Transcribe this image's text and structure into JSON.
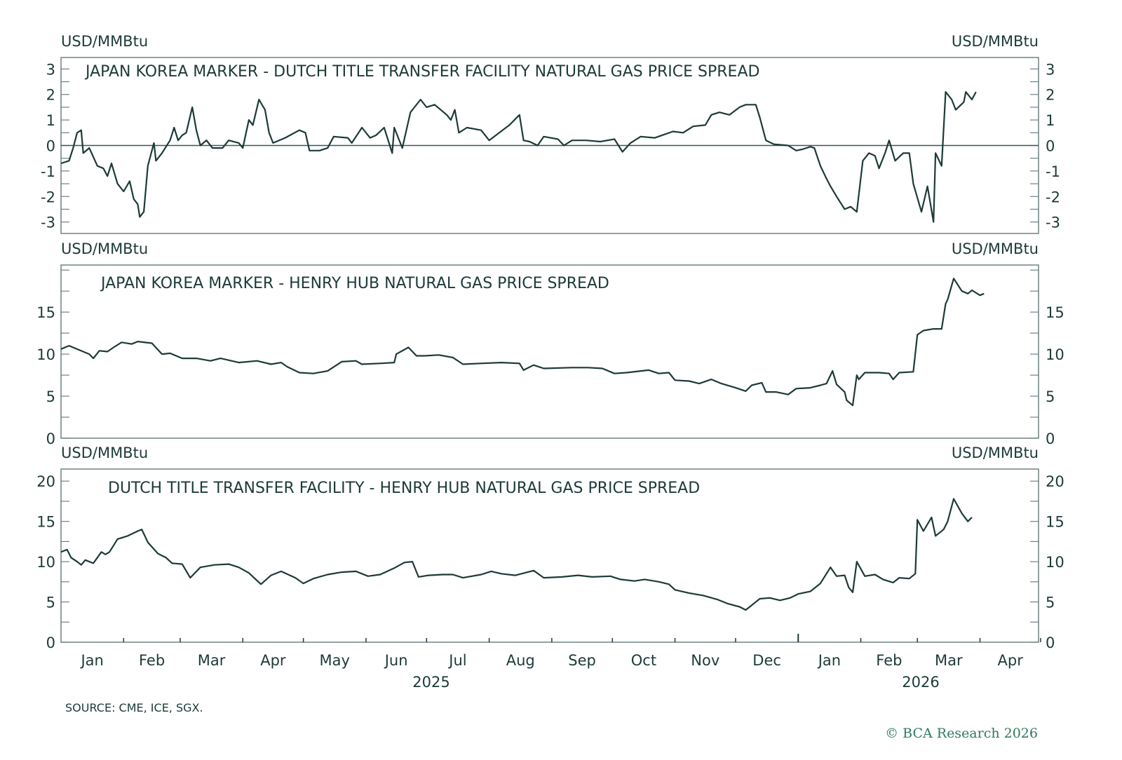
{
  "colors": {
    "line": "#1c3a38",
    "frame": "#6f8382",
    "zero_line": "#3a5654",
    "copyright": "#2e7a5a"
  },
  "source": "SOURCE: CME, ICE, SGX.",
  "copyright": "© BCA Research 2026",
  "x_axis": {
    "months": [
      "Jan",
      "Feb",
      "Mar",
      "Apr",
      "May",
      "Jun",
      "Jul",
      "Aug",
      "Sep",
      "Oct",
      "Nov",
      "Dec",
      "Jan",
      "Feb",
      "Mar",
      "Apr"
    ],
    "years": [
      "2025",
      "2026"
    ],
    "xlim": [
      "2025-01-01",
      "2026-04-30"
    ]
  },
  "chart_data": [
    {
      "type": "line",
      "title": "JAPAN KOREA MARKER - DUTCH TITLE TRANSFER FACILITY NATURAL GAS PRICE SPREAD",
      "ylabel_left": "USD/MMBtu",
      "ylabel_right": "USD/MMBtu",
      "ylim": [
        -3.45,
        3.45
      ],
      "yticks": [
        3,
        2,
        1,
        0,
        -1,
        -2,
        -3
      ],
      "yticklabels": [
        "3",
        "2",
        "1",
        "0",
        "-1",
        "-2",
        "-3"
      ],
      "zero_line": true,
      "x": [
        "2025-01-01",
        "2025-01-05",
        "2025-01-07",
        "2025-01-09",
        "2025-01-11",
        "2025-01-12",
        "2025-01-15",
        "2025-01-19",
        "2025-01-22",
        "2025-01-24",
        "2025-01-26",
        "2025-01-29",
        "2025-02-01",
        "2025-02-04",
        "2025-02-06",
        "2025-02-08",
        "2025-02-09",
        "2025-02-11",
        "2025-02-13",
        "2025-02-16",
        "2025-02-17",
        "2025-02-20",
        "2025-02-24",
        "2025-02-26",
        "2025-02-28",
        "2025-03-02",
        "2025-03-04",
        "2025-03-07",
        "2025-03-09",
        "2025-03-11",
        "2025-03-14",
        "2025-03-17",
        "2025-03-22",
        "2025-03-25",
        "2025-03-30",
        "2025-04-01",
        "2025-04-04",
        "2025-04-06",
        "2025-04-09",
        "2025-04-12",
        "2025-04-14",
        "2025-04-16",
        "2025-04-22",
        "2025-04-29",
        "2025-05-02",
        "2025-05-04",
        "2025-05-09",
        "2025-05-13",
        "2025-05-16",
        "2025-05-23",
        "2025-05-25",
        "2025-05-30",
        "2025-06-03",
        "2025-06-06",
        "2025-06-10",
        "2025-06-14",
        "2025-06-15",
        "2025-06-19",
        "2025-06-23",
        "2025-06-28",
        "2025-07-01",
        "2025-07-05",
        "2025-07-11",
        "2025-07-13",
        "2025-07-15",
        "2025-07-17",
        "2025-07-21",
        "2025-07-28",
        "2025-08-01",
        "2025-08-06",
        "2025-08-11",
        "2025-08-16",
        "2025-08-18",
        "2025-08-21",
        "2025-08-25",
        "2025-08-28",
        "2025-09-04",
        "2025-09-07",
        "2025-09-11",
        "2025-09-18",
        "2025-09-25",
        "2025-10-02",
        "2025-10-06",
        "2025-10-10",
        "2025-10-15",
        "2025-10-22",
        "2025-10-31",
        "2025-11-05",
        "2025-11-10",
        "2025-11-16",
        "2025-11-19",
        "2025-11-23",
        "2025-11-28",
        "2025-12-03",
        "2025-12-06",
        "2025-12-11",
        "2025-12-13",
        "2025-12-16",
        "2025-12-20",
        "2025-12-27",
        "2025-12-31",
        "2026-01-03",
        "2026-01-07",
        "2026-01-09",
        "2026-01-12",
        "2026-01-15",
        "2026-01-17",
        "2026-01-20",
        "2026-01-24",
        "2026-01-27",
        "2026-01-30",
        "2026-02-02",
        "2026-02-05",
        "2026-02-08",
        "2026-02-10",
        "2026-02-13",
        "2026-02-15",
        "2026-02-18",
        "2026-02-22",
        "2026-02-25",
        "2026-02-27",
        "2026-03-03",
        "2026-03-06",
        "2026-03-09",
        "2026-03-10",
        "2026-03-13",
        "2026-03-15",
        "2026-03-18",
        "2026-03-20",
        "2026-03-24",
        "2026-03-25",
        "2026-03-28",
        "2026-03-30"
      ],
      "y": [
        -0.7,
        -0.6,
        -0.1,
        0.5,
        0.6,
        -0.3,
        -0.1,
        -0.8,
        -0.9,
        -1.2,
        -0.7,
        -1.5,
        -1.8,
        -1.4,
        -2.1,
        -2.3,
        -2.8,
        -2.6,
        -0.8,
        0.1,
        -0.6,
        -0.3,
        0.2,
        0.7,
        0.2,
        0.4,
        0.5,
        1.5,
        0.6,
        0.0,
        0.2,
        -0.1,
        -0.1,
        0.2,
        0.1,
        -0.1,
        1.0,
        0.8,
        1.8,
        1.4,
        0.5,
        0.1,
        0.3,
        0.6,
        0.5,
        -0.2,
        -0.2,
        -0.1,
        0.35,
        0.3,
        0.1,
        0.7,
        0.3,
        0.4,
        0.7,
        -0.3,
        0.7,
        -0.1,
        1.3,
        1.8,
        1.5,
        1.6,
        1.2,
        1.0,
        1.4,
        0.5,
        0.7,
        0.6,
        0.2,
        0.5,
        0.8,
        1.2,
        0.2,
        0.15,
        0.0,
        0.35,
        0.25,
        0.0,
        0.2,
        0.2,
        0.15,
        0.25,
        -0.25,
        0.1,
        0.35,
        0.3,
        0.55,
        0.5,
        0.75,
        0.8,
        1.2,
        1.3,
        1.2,
        1.5,
        1.6,
        1.6,
        1.1,
        0.2,
        0.05,
        0.0,
        -0.2,
        -0.15,
        -0.05,
        -0.1,
        -0.8,
        -1.3,
        -1.6,
        -2.0,
        -2.5,
        -2.4,
        -2.6,
        -0.6,
        -0.3,
        -0.4,
        -0.9,
        -0.3,
        0.2,
        -0.6,
        -0.3,
        -0.3,
        -1.5,
        -2.6,
        -1.6,
        -3.0,
        -0.3,
        -0.8,
        2.1,
        1.8,
        1.4,
        1.7,
        2.1,
        1.8,
        2.1
      ]
    },
    {
      "type": "line",
      "title": "JAPAN KOREA MARKER - HENRY HUB NATURAL GAS PRICE SPREAD",
      "ylabel_left": "USD/MMBtu",
      "ylabel_right": "USD/MMBtu",
      "ylim": [
        0,
        20.6
      ],
      "yticks": [
        0,
        5,
        10,
        15
      ],
      "yticklabels": [
        "0",
        "5",
        "10",
        "15"
      ],
      "x": [
        "2025-01-01",
        "2025-01-05",
        "2025-01-10",
        "2025-01-15",
        "2025-01-17",
        "2025-01-20",
        "2025-01-24",
        "2025-01-27",
        "2025-01-31",
        "2025-02-05",
        "2025-02-08",
        "2025-02-15",
        "2025-02-20",
        "2025-02-24",
        "2025-03-02",
        "2025-03-09",
        "2025-03-16",
        "2025-03-21",
        "2025-03-30",
        "2025-04-08",
        "2025-04-15",
        "2025-04-20",
        "2025-04-23",
        "2025-04-29",
        "2025-05-06",
        "2025-05-13",
        "2025-05-20",
        "2025-05-27",
        "2025-05-30",
        "2025-06-08",
        "2025-06-15",
        "2025-06-16",
        "2025-06-22",
        "2025-06-26",
        "2025-06-30",
        "2025-07-07",
        "2025-07-14",
        "2025-07-19",
        "2025-07-28",
        "2025-08-07",
        "2025-08-16",
        "2025-08-18",
        "2025-08-23",
        "2025-08-28",
        "2025-09-11",
        "2025-09-19",
        "2025-09-26",
        "2025-10-02",
        "2025-10-08",
        "2025-10-19",
        "2025-10-24",
        "2025-10-29",
        "2025-11-01",
        "2025-11-08",
        "2025-11-13",
        "2025-11-19",
        "2025-11-24",
        "2025-12-01",
        "2025-12-06",
        "2025-12-09",
        "2025-12-14",
        "2025-12-16",
        "2025-12-21",
        "2025-12-27",
        "2025-12-31",
        "2026-01-07",
        "2026-01-12",
        "2026-01-15",
        "2026-01-18",
        "2026-01-20",
        "2026-01-24",
        "2026-01-25",
        "2026-01-28",
        "2026-01-30",
        "2026-01-31",
        "2026-02-03",
        "2026-02-10",
        "2026-02-15",
        "2026-02-17",
        "2026-02-20",
        "2026-02-27",
        "2026-03-01",
        "2026-03-04",
        "2026-03-09",
        "2026-03-13",
        "2026-03-15",
        "2026-03-16",
        "2026-03-19",
        "2026-03-23",
        "2026-03-26",
        "2026-03-28",
        "2026-04-01",
        "2026-04-03"
      ],
      "y": [
        10.6,
        11.0,
        10.5,
        10.0,
        9.5,
        10.4,
        10.3,
        10.8,
        11.4,
        11.2,
        11.5,
        11.3,
        10.0,
        10.1,
        9.5,
        9.5,
        9.2,
        9.5,
        9.0,
        9.2,
        8.8,
        9.0,
        8.5,
        7.8,
        7.7,
        8.0,
        9.1,
        9.2,
        8.8,
        8.9,
        9.0,
        10.0,
        10.8,
        9.8,
        9.8,
        9.9,
        9.6,
        8.8,
        8.9,
        9.0,
        8.9,
        8.1,
        8.7,
        8.3,
        8.4,
        8.4,
        8.3,
        7.7,
        7.8,
        8.1,
        7.7,
        7.8,
        6.9,
        6.8,
        6.5,
        7.0,
        6.5,
        6.0,
        5.6,
        6.3,
        6.6,
        5.5,
        5.5,
        5.2,
        5.9,
        6.0,
        6.3,
        6.5,
        8.0,
        6.4,
        5.5,
        4.5,
        3.9,
        7.5,
        7.0,
        7.8,
        7.8,
        7.7,
        7.0,
        7.8,
        7.9,
        12.3,
        12.8,
        13.0,
        13.0,
        16.0,
        16.5,
        19.0,
        17.5,
        17.2,
        17.6,
        17.0,
        17.2
      ]
    },
    {
      "type": "line",
      "title": "DUTCH TITLE TRANSFER FACILITY - HENRY HUB NATURAL GAS PRICE SPREAD",
      "ylabel_left": "USD/MMBtu",
      "ylabel_right": "USD/MMBtu",
      "ylim": [
        0,
        21.5
      ],
      "yticks": [
        0,
        5,
        10,
        15,
        20
      ],
      "yticklabels": [
        "0",
        "5",
        "10",
        "15",
        "20"
      ],
      "x": [
        "2025-01-01",
        "2025-01-04",
        "2025-01-06",
        "2025-01-09",
        "2025-01-11",
        "2025-01-13",
        "2025-01-17",
        "2025-01-21",
        "2025-01-23",
        "2025-01-25",
        "2025-01-29",
        "2025-02-03",
        "2025-02-08",
        "2025-02-10",
        "2025-02-13",
        "2025-02-18",
        "2025-02-22",
        "2025-02-25",
        "2025-03-02",
        "2025-03-06",
        "2025-03-11",
        "2025-03-18",
        "2025-03-25",
        "2025-03-30",
        "2025-04-04",
        "2025-04-10",
        "2025-04-15",
        "2025-04-20",
        "2025-04-27",
        "2025-05-01",
        "2025-05-06",
        "2025-05-13",
        "2025-05-20",
        "2025-05-27",
        "2025-06-02",
        "2025-06-08",
        "2025-06-15",
        "2025-06-20",
        "2025-06-24",
        "2025-06-27",
        "2025-07-02",
        "2025-07-09",
        "2025-07-14",
        "2025-07-19",
        "2025-07-28",
        "2025-08-02",
        "2025-08-07",
        "2025-08-14",
        "2025-08-23",
        "2025-08-28",
        "2025-09-06",
        "2025-09-14",
        "2025-09-21",
        "2025-09-30",
        "2025-10-05",
        "2025-10-12",
        "2025-10-17",
        "2025-10-24",
        "2025-10-29",
        "2025-11-01",
        "2025-11-08",
        "2025-11-15",
        "2025-11-22",
        "2025-11-27",
        "2025-12-03",
        "2025-12-06",
        "2025-12-09",
        "2025-12-13",
        "2025-12-18",
        "2025-12-23",
        "2025-12-28",
        "2026-01-01",
        "2026-01-07",
        "2026-01-12",
        "2026-01-17",
        "2026-01-20",
        "2026-01-24",
        "2026-01-26",
        "2026-01-28",
        "2026-01-30",
        "2026-02-03",
        "2026-02-08",
        "2026-02-12",
        "2026-02-17",
        "2026-02-20",
        "2026-02-25",
        "2026-02-28",
        "2026-03-01",
        "2026-03-04",
        "2026-03-08",
        "2026-03-10",
        "2026-03-14",
        "2026-03-16",
        "2026-03-19",
        "2026-03-23",
        "2026-03-26",
        "2026-03-28"
      ],
      "y": [
        11.2,
        11.5,
        10.5,
        10.0,
        9.6,
        10.2,
        9.8,
        11.2,
        10.9,
        11.2,
        12.8,
        13.2,
        13.8,
        14.0,
        12.4,
        11.0,
        10.5,
        9.8,
        9.7,
        8.0,
        9.3,
        9.6,
        9.7,
        9.3,
        8.6,
        7.2,
        8.3,
        8.8,
        8.0,
        7.3,
        7.9,
        8.4,
        8.7,
        8.8,
        8.2,
        8.4,
        9.2,
        9.9,
        10.0,
        8.1,
        8.3,
        8.4,
        8.4,
        8.0,
        8.4,
        8.8,
        8.5,
        8.3,
        8.9,
        8.0,
        8.1,
        8.3,
        8.1,
        8.2,
        7.8,
        7.6,
        7.8,
        7.5,
        7.2,
        6.5,
        6.1,
        5.8,
        5.3,
        4.8,
        4.4,
        4.0,
        4.6,
        5.4,
        5.5,
        5.2,
        5.5,
        6.0,
        6.3,
        7.3,
        9.3,
        8.2,
        8.3,
        6.8,
        6.2,
        10.0,
        8.2,
        8.4,
        7.8,
        7.4,
        8.0,
        7.9,
        8.5,
        15.2,
        13.8,
        15.5,
        13.2,
        14.0,
        15.0,
        17.8,
        16.0,
        15.0,
        15.5
      ]
    }
  ]
}
